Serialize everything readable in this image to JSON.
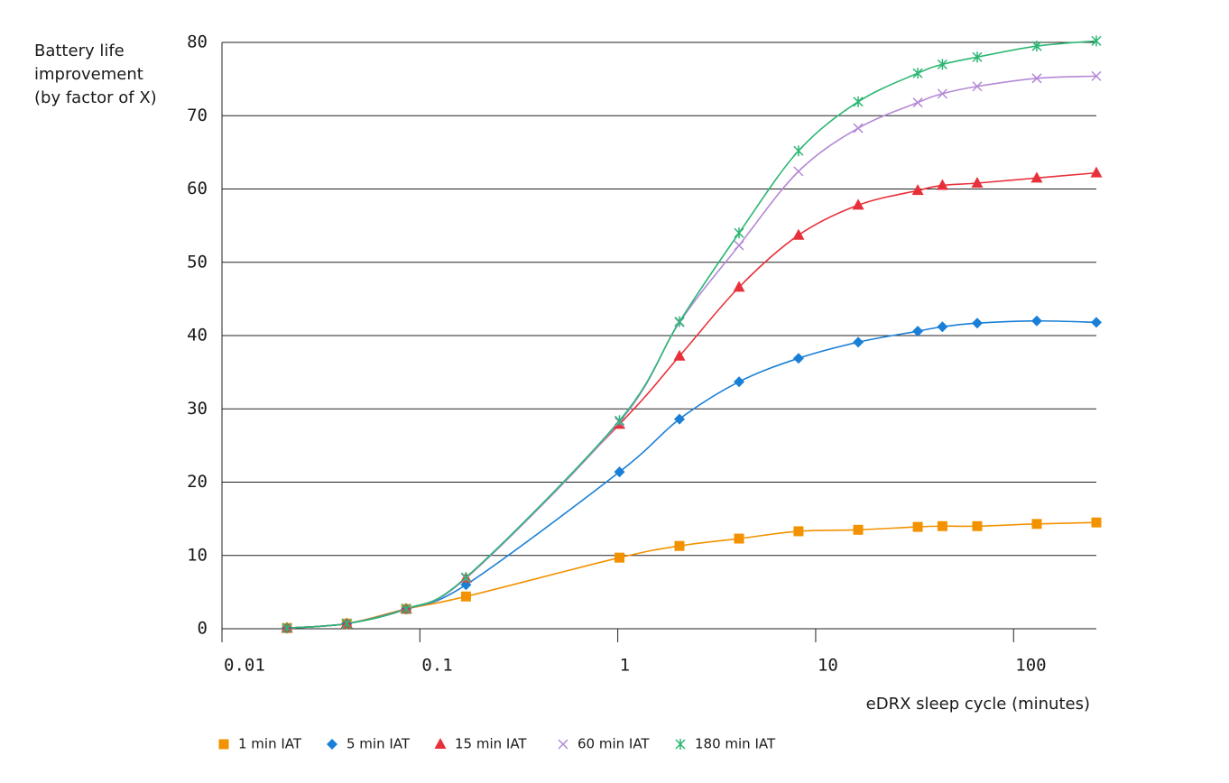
{
  "chart_data": {
    "type": "line",
    "ylabel": [
      "Battery life",
      "improvement",
      "(by factor of X)"
    ],
    "xlabel": "eDRX sleep cycle (minutes)",
    "x": [
      0.0213,
      0.0427,
      0.0853,
      0.171,
      1.02,
      2.05,
      4.1,
      8.19,
      16.4,
      32.8,
      43.7,
      65.5,
      131,
      262
    ],
    "xlim": [
      0.01,
      262
    ],
    "xticks": [
      0.01,
      0.1,
      1,
      10,
      100
    ],
    "xscale": "log",
    "ylim": [
      0,
      80
    ],
    "yticks": [
      0,
      10,
      20,
      30,
      40,
      50,
      60,
      70,
      80
    ],
    "grid": true,
    "legend": "bottom",
    "series": [
      {
        "name": "1 min IAT",
        "color": "#f39200",
        "marker": "square",
        "values": [
          0.1,
          0.7,
          2.7,
          4.4,
          9.7,
          11.3,
          12.3,
          13.3,
          13.5,
          13.9,
          14.0,
          14.0,
          14.3,
          14.5
        ]
      },
      {
        "name": "5 min IAT",
        "color": "#1a7fd6",
        "marker": "diamond",
        "values": [
          0.1,
          0.7,
          2.7,
          6.0,
          21.4,
          28.6,
          33.7,
          36.9,
          39.1,
          40.6,
          41.2,
          41.7,
          42.0,
          41.8
        ]
      },
      {
        "name": "15 min IAT",
        "color": "#e8303a",
        "marker": "triangle",
        "values": [
          0.1,
          0.7,
          2.7,
          6.9,
          27.9,
          37.2,
          46.6,
          53.7,
          57.8,
          59.8,
          60.5,
          60.8,
          61.5,
          62.2
        ]
      },
      {
        "name": "60 min IAT",
        "color": "#b389d6",
        "marker": "x",
        "values": [
          0.1,
          0.7,
          2.7,
          6.9,
          28.2,
          41.8,
          52.3,
          62.4,
          68.3,
          71.8,
          73.0,
          74.0,
          75.1,
          75.4
        ]
      },
      {
        "name": "180 min IAT",
        "color": "#2bb673",
        "marker": "star",
        "values": [
          0.1,
          0.7,
          2.7,
          7.0,
          28.4,
          41.9,
          54,
          65.2,
          71.9,
          75.8,
          77.0,
          78.0,
          79.5,
          80.2
        ]
      }
    ]
  }
}
